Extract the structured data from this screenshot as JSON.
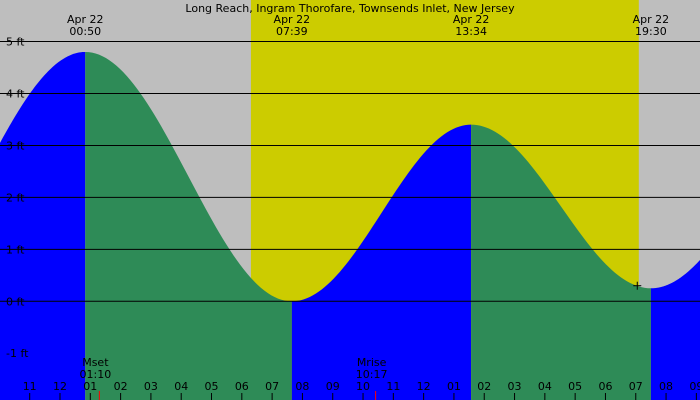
{
  "chart_data": {
    "type": "area",
    "title": "Long Reach, Ingram Thorofare, Townsends Inlet, New Jersey",
    "y_unit": "ft",
    "ylim": [
      -1.9,
      5.8
    ],
    "y_ticks": [
      {
        "value": 5,
        "label": "5 ft"
      },
      {
        "value": 4,
        "label": "4 ft"
      },
      {
        "value": 3,
        "label": "3 ft"
      },
      {
        "value": 2,
        "label": "2 ft"
      },
      {
        "value": 1,
        "label": "1 ft"
      },
      {
        "value": 0,
        "label": "0 ft"
      },
      {
        "value": -1,
        "label": "-1 ft"
      }
    ],
    "x_range_hours": [
      -1.98,
      21.12
    ],
    "hour_labels": [
      {
        "hour": -1,
        "label": "11"
      },
      {
        "hour": 0,
        "label": "12"
      },
      {
        "hour": 1,
        "label": "01"
      },
      {
        "hour": 2,
        "label": "02"
      },
      {
        "hour": 3,
        "label": "03"
      },
      {
        "hour": 4,
        "label": "04"
      },
      {
        "hour": 5,
        "label": "05"
      },
      {
        "hour": 6,
        "label": "06"
      },
      {
        "hour": 7,
        "label": "07"
      },
      {
        "hour": 8,
        "label": "08"
      },
      {
        "hour": 9,
        "label": "09"
      },
      {
        "hour": 10,
        "label": "10"
      },
      {
        "hour": 11,
        "label": "11"
      },
      {
        "hour": 12,
        "label": "12"
      },
      {
        "hour": 13,
        "label": "01"
      },
      {
        "hour": 14,
        "label": "02"
      },
      {
        "hour": 15,
        "label": "03"
      },
      {
        "hour": 16,
        "label": "04"
      },
      {
        "hour": 17,
        "label": "05"
      },
      {
        "hour": 18,
        "label": "06"
      },
      {
        "hour": 19,
        "label": "07"
      },
      {
        "hour": 20,
        "label": "08"
      },
      {
        "hour": 21,
        "label": "09"
      }
    ],
    "tide_events": [
      {
        "type": "high",
        "date": "Apr 22",
        "time": "00:50",
        "hour": 0.833,
        "height": 4.8
      },
      {
        "type": "low",
        "date": "Apr 22",
        "time": "07:39",
        "hour": 7.65,
        "height": 0.0
      },
      {
        "type": "high",
        "date": "Apr 22",
        "time": "13:34",
        "hour": 13.567,
        "height": 3.4
      },
      {
        "type": "low",
        "date": "Apr 22",
        "time": "19:30",
        "hour": 19.5,
        "height": 0.25
      }
    ],
    "daylight": {
      "start_hour": 6.3,
      "end_hour": 19.1
    },
    "moon_events": [
      {
        "label": "Mset",
        "time": "01:10",
        "hour": 1.167
      },
      {
        "label": "Mrise",
        "time": "10:17",
        "hour": 10.283
      }
    ],
    "current_marker": {
      "hour": 19.05,
      "height": 0.3
    },
    "colors": {
      "night": "#bebebe",
      "day": "#cccc00",
      "rising": "#0000ff",
      "falling": "#2e8b57",
      "grid": "#000000",
      "moon_tick": "#ff0000"
    }
  }
}
